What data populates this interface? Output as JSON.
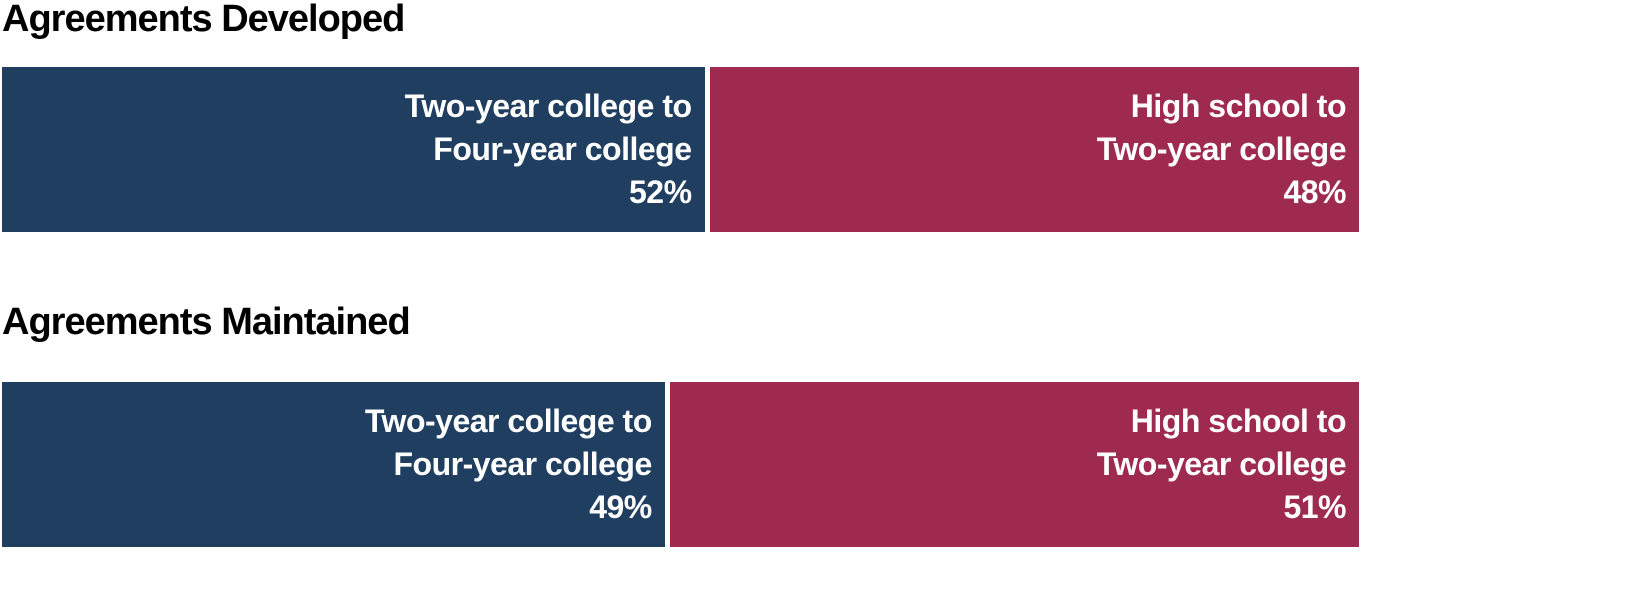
{
  "page": {
    "background": "#ffffff"
  },
  "colors": {
    "segment_blue": "#1F3E60",
    "segment_red": "#9E2A50",
    "title_text": "#000000",
    "bar_label_text": "#ffffff"
  },
  "chart_data": [
    {
      "type": "bar",
      "orientation": "horizontal",
      "stacking": "100%",
      "title": "Agreements Developed",
      "legend": "none",
      "axes_visible": false,
      "data_label_style": "inside-end, white bold, category name over percent",
      "categories": [
        "Two-year college to Four-year college",
        "High school to Two-year college"
      ],
      "values": [
        52,
        48
      ],
      "segments": [
        {
          "category": "Two-year college to Four-year college",
          "label_lines": [
            "Two-year college to",
            "Four-year college"
          ],
          "value_pct": 52,
          "value_label": "52%",
          "color": "#1F3E60"
        },
        {
          "category": "High school to Two-year college",
          "label_lines": [
            "High school to",
            "Two-year college"
          ],
          "value_pct": 48,
          "value_label": "48%",
          "color": "#9E2A50"
        }
      ]
    },
    {
      "type": "bar",
      "orientation": "horizontal",
      "stacking": "100%",
      "title": "Agreements Maintained",
      "legend": "none",
      "axes_visible": false,
      "data_label_style": "inside-end, white bold, category name over percent",
      "categories": [
        "Two-year college to Four-year college",
        "High school to Two-year college"
      ],
      "values": [
        49,
        51
      ],
      "segments": [
        {
          "category": "Two-year college to Four-year college",
          "label_lines": [
            "Two-year college to",
            "Four-year college"
          ],
          "value_pct": 49,
          "value_label": "49%",
          "color": "#1F3E60"
        },
        {
          "category": "High school to Two-year college",
          "label_lines": [
            "High school to",
            "Two-year college"
          ],
          "value_pct": 51,
          "value_label": "51%",
          "color": "#9E2A50"
        }
      ]
    }
  ]
}
